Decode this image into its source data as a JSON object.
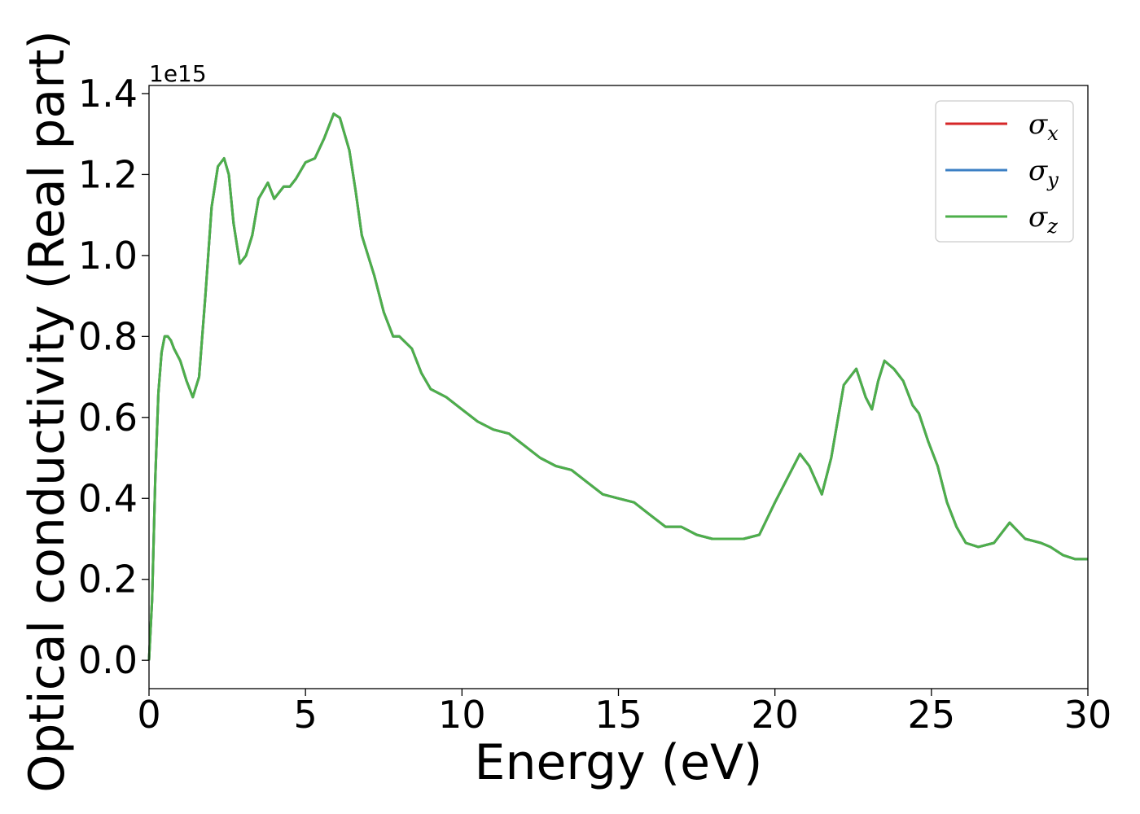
{
  "chart_data": {
    "type": "line",
    "xlabel": "Energy (eV)",
    "ylabel": "Optical conductivity (Real part)",
    "y_offset_label": "1e15",
    "xlim": [
      0,
      30
    ],
    "ylim": [
      -0.07,
      1.42
    ],
    "x_ticks": [
      0,
      5,
      10,
      15,
      20,
      25,
      30
    ],
    "x_tick_labels": [
      "0",
      "5",
      "10",
      "15",
      "20",
      "25",
      "30"
    ],
    "y_ticks": [
      0.0,
      0.2,
      0.4,
      0.6,
      0.8,
      1.0,
      1.2,
      1.4
    ],
    "y_tick_labels": [
      "0.0",
      "0.2",
      "0.4",
      "0.6",
      "0.8",
      "1.0",
      "1.2",
      "1.4"
    ],
    "grid": false,
    "legend_position": "top-right",
    "x": [
      0,
      0.1,
      0.2,
      0.3,
      0.4,
      0.5,
      0.6,
      0.7,
      0.8,
      1.0,
      1.2,
      1.4,
      1.6,
      1.8,
      2.0,
      2.2,
      2.4,
      2.55,
      2.7,
      2.9,
      3.1,
      3.3,
      3.5,
      3.8,
      4.0,
      4.3,
      4.5,
      4.7,
      5.0,
      5.3,
      5.6,
      5.9,
      6.1,
      6.4,
      6.6,
      6.8,
      7.0,
      7.2,
      7.5,
      7.8,
      8.0,
      8.4,
      8.7,
      9.0,
      9.5,
      10.0,
      10.5,
      11.0,
      11.5,
      12.0,
      12.5,
      13.0,
      13.5,
      14.0,
      14.5,
      15.0,
      15.5,
      16.0,
      16.5,
      17.0,
      17.5,
      18.0,
      18.5,
      19.0,
      19.5,
      20.0,
      20.4,
      20.8,
      21.1,
      21.5,
      21.8,
      22.2,
      22.6,
      22.9,
      23.1,
      23.3,
      23.5,
      23.8,
      24.1,
      24.4,
      24.6,
      24.9,
      25.2,
      25.5,
      25.8,
      26.1,
      26.5,
      27.0,
      27.5,
      28.0,
      28.5,
      28.8,
      29.2,
      29.6,
      30.0
    ],
    "series": [
      {
        "name": "σx",
        "color": "#d62728",
        "values": [
          0.0,
          0.15,
          0.45,
          0.66,
          0.76,
          0.8,
          0.8,
          0.79,
          0.77,
          0.74,
          0.69,
          0.65,
          0.7,
          0.9,
          1.12,
          1.22,
          1.24,
          1.2,
          1.08,
          0.98,
          1.0,
          1.05,
          1.14,
          1.18,
          1.14,
          1.17,
          1.17,
          1.19,
          1.23,
          1.24,
          1.29,
          1.35,
          1.34,
          1.26,
          1.16,
          1.05,
          1.0,
          0.95,
          0.86,
          0.8,
          0.8,
          0.77,
          0.71,
          0.67,
          0.65,
          0.62,
          0.59,
          0.57,
          0.56,
          0.53,
          0.5,
          0.48,
          0.47,
          0.44,
          0.41,
          0.4,
          0.39,
          0.36,
          0.33,
          0.33,
          0.31,
          0.3,
          0.3,
          0.3,
          0.31,
          0.39,
          0.45,
          0.51,
          0.48,
          0.41,
          0.5,
          0.68,
          0.72,
          0.65,
          0.62,
          0.69,
          0.74,
          0.72,
          0.69,
          0.63,
          0.61,
          0.54,
          0.48,
          0.39,
          0.33,
          0.29,
          0.28,
          0.29,
          0.34,
          0.3,
          0.29,
          0.28,
          0.26,
          0.25,
          0.25
        ]
      },
      {
        "name": "σy",
        "color": "#3b7fc4",
        "values": [
          0.0,
          0.15,
          0.45,
          0.66,
          0.76,
          0.8,
          0.8,
          0.79,
          0.77,
          0.74,
          0.69,
          0.65,
          0.7,
          0.9,
          1.12,
          1.22,
          1.24,
          1.2,
          1.08,
          0.98,
          1.0,
          1.05,
          1.14,
          1.18,
          1.14,
          1.17,
          1.17,
          1.19,
          1.23,
          1.24,
          1.29,
          1.35,
          1.34,
          1.26,
          1.16,
          1.05,
          1.0,
          0.95,
          0.86,
          0.8,
          0.8,
          0.77,
          0.71,
          0.67,
          0.65,
          0.62,
          0.59,
          0.57,
          0.56,
          0.53,
          0.5,
          0.48,
          0.47,
          0.44,
          0.41,
          0.4,
          0.39,
          0.36,
          0.33,
          0.33,
          0.31,
          0.3,
          0.3,
          0.3,
          0.31,
          0.39,
          0.45,
          0.51,
          0.48,
          0.41,
          0.5,
          0.68,
          0.72,
          0.65,
          0.62,
          0.69,
          0.74,
          0.72,
          0.69,
          0.63,
          0.61,
          0.54,
          0.48,
          0.39,
          0.33,
          0.29,
          0.28,
          0.29,
          0.34,
          0.3,
          0.29,
          0.28,
          0.26,
          0.25,
          0.25
        ]
      },
      {
        "name": "σz",
        "color": "#4daf4a",
        "values": [
          0.0,
          0.15,
          0.45,
          0.66,
          0.76,
          0.8,
          0.8,
          0.79,
          0.77,
          0.74,
          0.69,
          0.65,
          0.7,
          0.9,
          1.12,
          1.22,
          1.24,
          1.2,
          1.08,
          0.98,
          1.0,
          1.05,
          1.14,
          1.18,
          1.14,
          1.17,
          1.17,
          1.19,
          1.23,
          1.24,
          1.29,
          1.35,
          1.34,
          1.26,
          1.16,
          1.05,
          1.0,
          0.95,
          0.86,
          0.8,
          0.8,
          0.77,
          0.71,
          0.67,
          0.65,
          0.62,
          0.59,
          0.57,
          0.56,
          0.53,
          0.5,
          0.48,
          0.47,
          0.44,
          0.41,
          0.4,
          0.39,
          0.36,
          0.33,
          0.33,
          0.31,
          0.3,
          0.3,
          0.3,
          0.31,
          0.39,
          0.45,
          0.51,
          0.48,
          0.41,
          0.5,
          0.68,
          0.72,
          0.65,
          0.62,
          0.69,
          0.74,
          0.72,
          0.69,
          0.63,
          0.61,
          0.54,
          0.48,
          0.39,
          0.33,
          0.29,
          0.28,
          0.29,
          0.34,
          0.3,
          0.29,
          0.28,
          0.26,
          0.25,
          0.25
        ]
      }
    ],
    "legend": [
      {
        "symbol": "σ",
        "sub": "x",
        "color": "#d62728"
      },
      {
        "symbol": "σ",
        "sub": "y",
        "color": "#3b7fc4"
      },
      {
        "symbol": "σ",
        "sub": "z",
        "color": "#4daf4a"
      }
    ]
  }
}
